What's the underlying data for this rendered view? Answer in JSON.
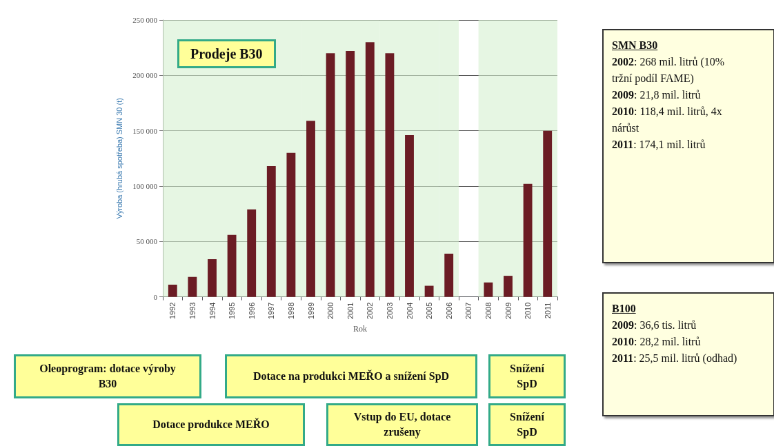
{
  "chart_data": {
    "type": "bar",
    "title": "Prodeje B30",
    "xlabel": "Rok",
    "ylabel": "Výroba (hrubá spotřeba) SMN 30 (t)",
    "categories": [
      "1992",
      "1993",
      "1994",
      "1995",
      "1996",
      "1997",
      "1998",
      "1999",
      "2000",
      "2001",
      "2002",
      "2003",
      "2004",
      "2005",
      "2006",
      "2007",
      "2008",
      "2009",
      "2010",
      "2011"
    ],
    "values": [
      11000,
      18000,
      34000,
      56000,
      79000,
      118000,
      130000,
      159000,
      220000,
      222000,
      230000,
      220000,
      146000,
      10000,
      39000,
      null,
      13000,
      19000,
      102000,
      150000
    ],
    "color": "#6b1c24",
    "ylim": [
      0,
      250000
    ],
    "yticks": [
      {
        "value": 0,
        "label": "0"
      },
      {
        "value": 50000,
        "label": "50 000"
      },
      {
        "value": 100000,
        "label": "100 000"
      },
      {
        "value": 150000,
        "label": "150 000"
      },
      {
        "value": 200000,
        "label": "200 000"
      },
      {
        "value": 250000,
        "label": "250 000"
      }
    ],
    "grid": "y",
    "bands": [
      {
        "axis": "x",
        "from": "1992",
        "to": "1996",
        "color": "#d6f0d0"
      },
      {
        "axis": "x",
        "from": "1997",
        "to": "1998",
        "color": "#d6f0d0"
      },
      {
        "axis": "x",
        "from": "1999",
        "to": "2002",
        "color": "#d6f0d0"
      },
      {
        "axis": "x",
        "from": "2003",
        "to": "2005",
        "color": "#d6f0d0"
      },
      {
        "axis": "x",
        "from": "2006",
        "to": "2006",
        "color": "#d6f0d0"
      },
      {
        "axis": "x",
        "from": "2008",
        "to": "2011",
        "color": "#d6f0d0"
      }
    ],
    "annotations": [
      "Oleoprogram: dotace výroby B30",
      "Dotace produkce MEŘO",
      "Dotace na produkci MEŘO a snížení SpD",
      "Vstup do EU, dotace zrušeny",
      "Snížení SpD",
      "Snížení SpD",
      "SMN B30",
      "2002: 268 mil. litrů (10% tržní podíl FAME)",
      "2009: 21,8 mil. litrů",
      "2010: 118,4 mil. litrů, 4x nárůst",
      "2011:  174,1 mil. litrů",
      "B100",
      "2009: 36,6 tis. litrů",
      "2010: 28,2 mil. litrů",
      "2011: 25,5 mil. litrů (odhad)"
    ]
  }
}
